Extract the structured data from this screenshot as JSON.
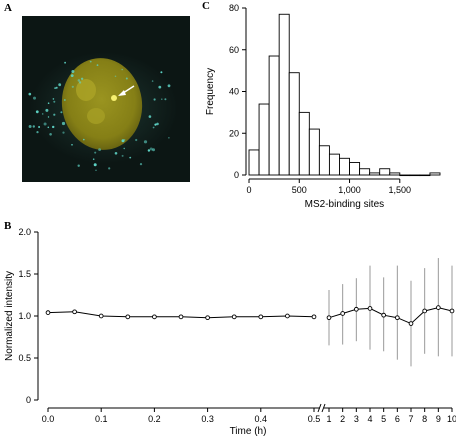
{
  "panels": {
    "a": {
      "letter": "A"
    },
    "b": {
      "letter": "B"
    },
    "c": {
      "letter": "C"
    }
  },
  "colors": {
    "nucleus": "#8f8a1a",
    "nucleoli": "#b0a82a",
    "spots": "#5fd6c8",
    "arrow": "#ffffff",
    "background": "#0c1614"
  },
  "chart_data": [
    {
      "type": "bar",
      "panel": "C",
      "xlabel": "MS2-binding sites",
      "ylabel": "Frequency",
      "bin_width": 100,
      "bin_edges_start": 0,
      "values": [
        12,
        34,
        57,
        77,
        49,
        30,
        22,
        14,
        10,
        8,
        6,
        3,
        1,
        3,
        1,
        0,
        0,
        0,
        1
      ],
      "xlim": [
        -30,
        1900
      ],
      "ylim": [
        0,
        80
      ],
      "xticks": [
        0,
        500,
        1000,
        1500
      ],
      "xtick_labels": [
        "0",
        "500",
        "1,000",
        "1,500"
      ],
      "yticks": [
        0,
        20,
        40,
        60,
        80
      ],
      "ytick_labels": [
        "0",
        "20",
        "40",
        "60",
        "80"
      ]
    },
    {
      "type": "line",
      "panel": "B",
      "xlabel": "Time (h)",
      "ylabel": "Normalized intensity",
      "ylim": [
        0,
        2.0
      ],
      "yticks": [
        0,
        0.5,
        1.0,
        1.5,
        2.0
      ],
      "ytick_labels": [
        "0",
        "0.5",
        "1.0",
        "1.5",
        "2.0"
      ],
      "segment_left": {
        "xlim": [
          0,
          0.5
        ],
        "xticks": [
          0.0,
          0.1,
          0.2,
          0.3,
          0.4,
          0.5
        ],
        "xtick_labels": [
          "0.0",
          "0.1",
          "0.2",
          "0.3",
          "0.4",
          "0.5"
        ],
        "x": [
          0,
          0.05,
          0.1,
          0.15,
          0.2,
          0.25,
          0.3,
          0.35,
          0.4,
          0.45,
          0.5
        ],
        "y": [
          1.04,
          1.05,
          1.0,
          0.99,
          0.99,
          0.99,
          0.98,
          0.99,
          0.99,
          1.0,
          0.99
        ]
      },
      "segment_right": {
        "xlim": [
          1,
          10
        ],
        "xticks": [
          1,
          2,
          3,
          4,
          5,
          6,
          7,
          8,
          9,
          10
        ],
        "xtick_labels": [
          "1",
          "2",
          "3",
          "4",
          "5",
          "6",
          "7",
          "8",
          "9",
          "10"
        ],
        "x": [
          1,
          2,
          3,
          4,
          5,
          6,
          7,
          8,
          9,
          10
        ],
        "y": [
          0.98,
          1.03,
          1.08,
          1.09,
          1.01,
          0.98,
          0.91,
          1.06,
          1.1,
          1.06
        ],
        "y_upper": [
          1.31,
          1.38,
          1.45,
          1.6,
          1.46,
          1.6,
          1.42,
          1.57,
          1.69,
          1.6
        ],
        "y_lower": [
          0.65,
          0.66,
          0.7,
          0.6,
          0.58,
          0.48,
          0.4,
          0.55,
          0.52,
          0.52
        ]
      }
    }
  ]
}
